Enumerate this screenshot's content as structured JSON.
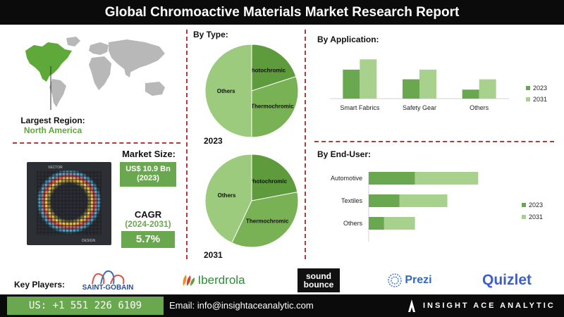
{
  "header": {
    "title": "Global Chromoactive Materials Market Research Report"
  },
  "region": {
    "label": "Largest Region:",
    "value": "North America",
    "highlight_color": "#5fa83a"
  },
  "market_size": {
    "label": "Market Size:",
    "value": "US$ 10.9 Bn",
    "year": "(2023)"
  },
  "cagr": {
    "label": "CAGR",
    "period": "(2024-2031)",
    "value": "5.7%"
  },
  "product_image": {
    "caption_top": "VECTOR",
    "caption_bottom": "DESIGN"
  },
  "key_players": {
    "label": "Key Players:",
    "logos": [
      "SAINT-GOBAIN",
      "Iberdrola",
      "sound bounce",
      "Prezi",
      "Quizlet"
    ]
  },
  "footer": {
    "phone": "US: +1 551 226 6109",
    "email": "Email: info@insightaceanalytic.com",
    "brand": "INSIGHT ACE ANALYTIC"
  },
  "colors": {
    "dark_green": "#6aa84f",
    "light_green": "#a9d18e",
    "pie_dark": "#5e9b3c",
    "pie_mid": "#79b155",
    "pie_light": "#9dcb7e",
    "divider": "#b23a3a"
  },
  "chart_data": [
    {
      "type": "pie",
      "title": "By Type:",
      "year_label": "2023",
      "slices": [
        {
          "label": "Photochromic",
          "value": 20
        },
        {
          "label": "Thermochromic",
          "value": 30
        },
        {
          "label": "Others",
          "value": 50
        }
      ]
    },
    {
      "type": "pie",
      "year_label": "2031",
      "slices": [
        {
          "label": "Photochromic",
          "value": 22
        },
        {
          "label": "Thermochromic",
          "value": 35
        },
        {
          "label": "Others",
          "value": 43
        }
      ]
    },
    {
      "type": "bar",
      "title": "By Application:",
      "categories": [
        "Smart Fabrics",
        "Safety Gear",
        "Others"
      ],
      "series": [
        {
          "name": "2023",
          "values": [
            45,
            30,
            14
          ]
        },
        {
          "name": "2031",
          "values": [
            61,
            45,
            30
          ]
        }
      ],
      "ylim": [
        0,
        70
      ],
      "legend": "right"
    },
    {
      "type": "bar",
      "orientation": "horizontal",
      "title": "By End-User:",
      "categories": [
        "Automotive",
        "Textiles",
        "Others"
      ],
      "series": [
        {
          "name": "2023",
          "values": [
            30,
            20,
            10
          ]
        },
        {
          "name": "2031",
          "values": [
            41,
            31,
            20
          ]
        }
      ],
      "xlim": [
        0,
        80
      ],
      "legend": "right"
    }
  ]
}
